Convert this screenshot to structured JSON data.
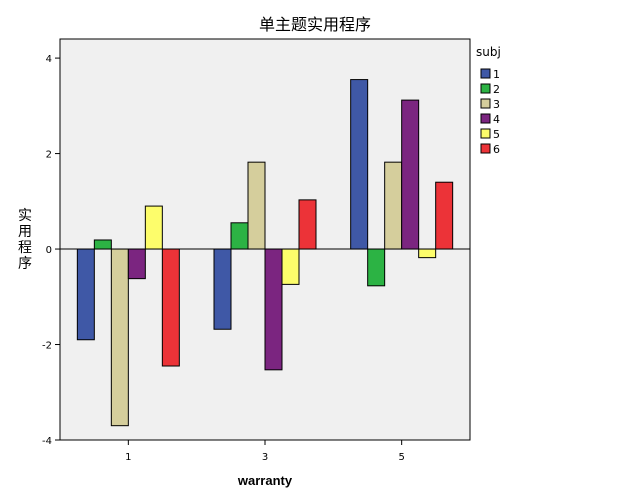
{
  "chart_data": {
    "type": "bar",
    "title": "单主题实用程序",
    "xlabel": "warranty",
    "ylabel": "实用程序",
    "categories": [
      "1",
      "3",
      "5"
    ],
    "yticks": [
      "-4",
      "-2",
      "0",
      "2",
      "4"
    ],
    "ylim": [
      -4,
      4.4
    ],
    "legend_title": "subj",
    "legend_position": "right",
    "series": [
      {
        "name": "1",
        "color": "#3f58a6",
        "values": [
          -1.9,
          -1.68,
          3.55
        ]
      },
      {
        "name": "2",
        "color": "#2cb344",
        "values": [
          0.19,
          0.55,
          -0.77
        ]
      },
      {
        "name": "3",
        "color": "#d5ce9c",
        "values": [
          -3.7,
          1.82,
          1.82
        ]
      },
      {
        "name": "4",
        "color": "#7b2580",
        "values": [
          -0.62,
          -2.53,
          3.12
        ]
      },
      {
        "name": "5",
        "color": "#fdfd6b",
        "values": [
          0.9,
          -0.74,
          -0.18
        ]
      },
      {
        "name": "6",
        "color": "#ec3338",
        "values": [
          -2.45,
          1.03,
          1.4
        ]
      }
    ]
  }
}
